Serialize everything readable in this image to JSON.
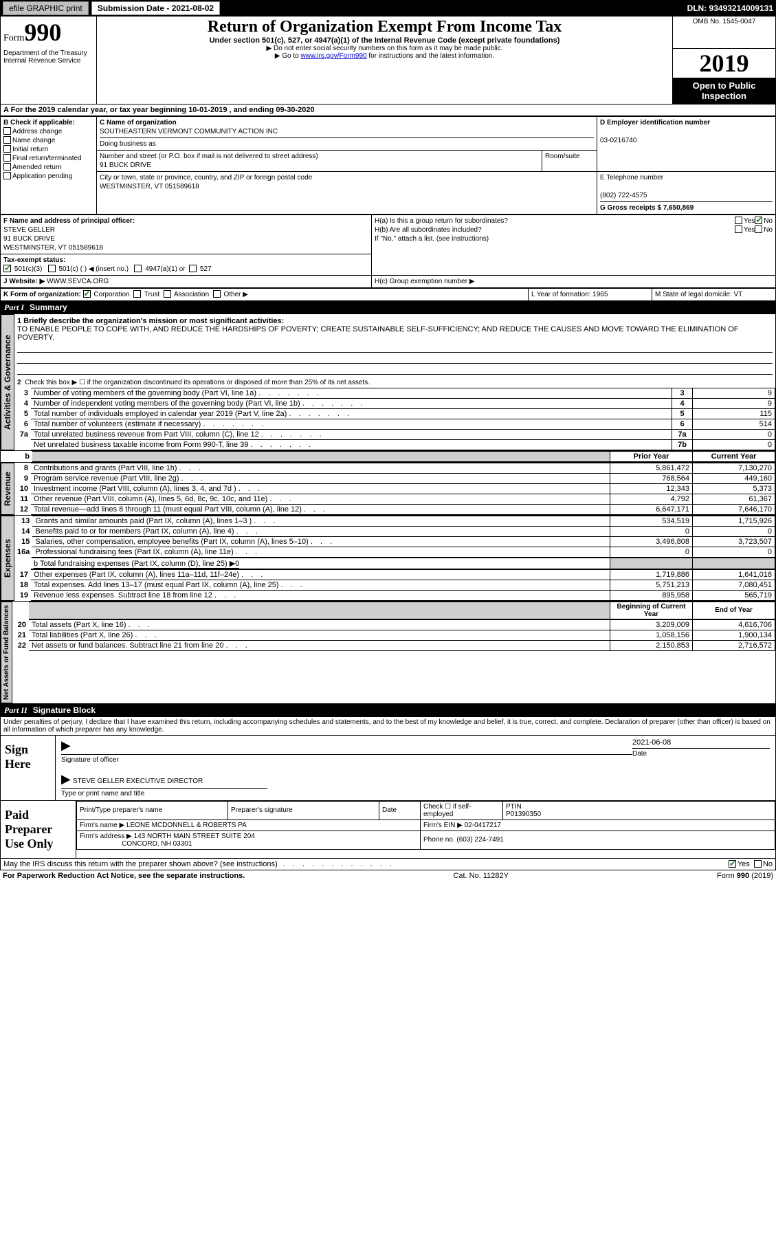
{
  "header_bar": {
    "efile": "efile GRAPHIC print",
    "sub_label": "Submission Date - 2021-08-02",
    "dln": "DLN: 93493214009131"
  },
  "top": {
    "form_label": "Form",
    "form_number": "990",
    "dept": "Department of the Treasury\nInternal Revenue Service",
    "title": "Return of Organization Exempt From Income Tax",
    "subtitle": "Under section 501(c), 527, or 4947(a)(1) of the Internal Revenue Code (except private foundations)",
    "note1": "▶ Do not enter social security numbers on this form as it may be made public.",
    "note2_pre": "▶ Go to ",
    "note2_link": "www.irs.gov/Form990",
    "note2_post": " for instructions and the latest information.",
    "omb": "OMB No. 1545-0047",
    "year": "2019",
    "otp": "Open to Public Inspection"
  },
  "period": {
    "line": "A For the 2019 calendar year, or tax year beginning 10-01-2019   , and ending 09-30-2020"
  },
  "section_b": {
    "heading": "B Check if applicable:",
    "items": [
      "Address change",
      "Name change",
      "Initial return",
      "Final return/terminated",
      "Amended return",
      "Application pending"
    ]
  },
  "section_c": {
    "name_label": "C Name of organization",
    "name": "SOUTHEASTERN VERMONT COMMUNITY ACTION INC",
    "dba_label": "Doing business as",
    "street_label": "Number and street (or P.O. box if mail is not delivered to street address)",
    "street": "91 BUCK DRIVE",
    "room_label": "Room/suite",
    "city_label": "City or town, state or province, country, and ZIP or foreign postal code",
    "city": "WESTMINSTER, VT  051589618"
  },
  "section_d": {
    "label": "D Employer identification number",
    "val": "03-0216740"
  },
  "section_e": {
    "label": "E Telephone number",
    "val": "(802) 722-4575"
  },
  "section_g": {
    "label": "G Gross receipts $ 7,650,869"
  },
  "section_f": {
    "label": "F  Name and address of principal officer:",
    "name": "STEVE GELLER",
    "addr1": "91 BUCK DRIVE",
    "addr2": "WESTMINSTER, VT  051589618"
  },
  "section_h": {
    "ha": "H(a)  Is this a group return for subordinates?",
    "hb": "H(b)  Are all subordinates included?",
    "hb_note": "If \"No,\" attach a list. (see instructions)",
    "hc": "H(c)  Group exemption number ▶",
    "yes": "Yes",
    "no": "No"
  },
  "tax_exempt": {
    "label": "Tax-exempt status:",
    "s1": "501(c)(3)",
    "s2": "501(c) (  ) ◀ (insert no.)",
    "s3": "4947(a)(1) or",
    "s4": "527"
  },
  "website": {
    "label": "J   Website: ▶",
    "val": "WWW.SEVCA.ORG"
  },
  "section_k": {
    "label": "K Form of organization:",
    "corp": "Corporation",
    "trust": "Trust",
    "assoc": "Association",
    "other": "Other ▶"
  },
  "section_l": {
    "label": "L Year of formation: 1965"
  },
  "section_m": {
    "label": "M State of legal domicile: VT"
  },
  "part1": {
    "header": "Summary",
    "part": "Part I"
  },
  "mission": {
    "q": "1  Briefly describe the organization's mission or most significant activities:",
    "text": "TO ENABLE PEOPLE TO COPE WITH, AND REDUCE THE HARDSHIPS OF POVERTY; CREATE SUSTAINABLE SELF-SUFFICIENCY; AND REDUCE THE CAUSES AND MOVE TOWARD THE ELIMINATION OF POVERTY."
  },
  "activities": {
    "label": "Activities & Governance",
    "l2": "Check this box ▶ ☐  if the organization discontinued its operations or disposed of more than 25% of its net assets.",
    "rows": [
      {
        "n": "3",
        "t": "Number of voting members of the governing body (Part VI, line 1a)",
        "b": "3",
        "v": "9"
      },
      {
        "n": "4",
        "t": "Number of independent voting members of the governing body (Part VI, line 1b)",
        "b": "4",
        "v": "9"
      },
      {
        "n": "5",
        "t": "Total number of individuals employed in calendar year 2019 (Part V, line 2a)",
        "b": "5",
        "v": "115"
      },
      {
        "n": "6",
        "t": "Total number of volunteers (estimate if necessary)",
        "b": "6",
        "v": "514"
      },
      {
        "n": "7a",
        "t": "Total unrelated business revenue from Part VIII, column (C), line 12",
        "b": "7a",
        "v": "0"
      },
      {
        "n": "",
        "t": "Net unrelated business taxable income from Form 990-T, line 39",
        "b": "7b",
        "v": "0"
      }
    ]
  },
  "pycy": {
    "prior": "Prior Year",
    "current": "Current Year"
  },
  "revenue": {
    "label": "Revenue",
    "rows": [
      {
        "n": "8",
        "t": "Contributions and grants (Part VIII, line 1h)",
        "p": "5,861,472",
        "c": "7,130,270"
      },
      {
        "n": "9",
        "t": "Program service revenue (Part VIII, line 2g)",
        "p": "768,564",
        "c": "449,160"
      },
      {
        "n": "10",
        "t": "Investment income (Part VIII, column (A), lines 3, 4, and 7d )",
        "p": "12,343",
        "c": "5,373"
      },
      {
        "n": "11",
        "t": "Other revenue (Part VIII, column (A), lines 5, 6d, 8c, 9c, 10c, and 11e)",
        "p": "4,792",
        "c": "61,367"
      },
      {
        "n": "12",
        "t": "Total revenue—add lines 8 through 11 (must equal Part VIII, column (A), line 12)",
        "p": "6,647,171",
        "c": "7,646,170"
      }
    ]
  },
  "expenses": {
    "label": "Expenses",
    "rows": [
      {
        "n": "13",
        "t": "Grants and similar amounts paid (Part IX, column (A), lines 1–3 )",
        "p": "534,519",
        "c": "1,715,926"
      },
      {
        "n": "14",
        "t": "Benefits paid to or for members (Part IX, column (A), line 4)",
        "p": "0",
        "c": "0"
      },
      {
        "n": "15",
        "t": "Salaries, other compensation, employee benefits (Part IX, column (A), lines 5–10)",
        "p": "3,496,808",
        "c": "3,723,507"
      },
      {
        "n": "16a",
        "t": "Professional fundraising fees (Part IX, column (A), line 11e)",
        "p": "0",
        "c": "0"
      }
    ],
    "l16b": "b  Total fundraising expenses (Part IX, column (D), line 25) ▶0",
    "rows2": [
      {
        "n": "17",
        "t": "Other expenses (Part IX, column (A), lines 11a–11d, 11f–24e)",
        "p": "1,719,886",
        "c": "1,641,018"
      },
      {
        "n": "18",
        "t": "Total expenses. Add lines 13–17 (must equal Part IX, column (A), line 25)",
        "p": "5,751,213",
        "c": "7,080,451"
      },
      {
        "n": "19",
        "t": "Revenue less expenses. Subtract line 18 from line 12",
        "p": "895,958",
        "c": "565,719"
      }
    ]
  },
  "netassets": {
    "label": "Net Assets or Fund Balances",
    "bcy": "Beginning of Current Year",
    "eoy": "End of Year",
    "rows": [
      {
        "n": "20",
        "t": "Total assets (Part X, line 16)",
        "p": "3,209,009",
        "c": "4,616,706"
      },
      {
        "n": "21",
        "t": "Total liabilities (Part X, line 26)",
        "p": "1,058,156",
        "c": "1,900,134"
      },
      {
        "n": "22",
        "t": "Net assets or fund balances. Subtract line 21 from line 20",
        "p": "2,150,853",
        "c": "2,716,572"
      }
    ]
  },
  "part2": {
    "header": "Signature Block",
    "part": "Part II"
  },
  "sig_declaration": "Under penalties of perjury, I declare that I have examined this return, including accompanying schedules and statements, and to the best of my knowledge and belief, it is true, correct, and complete. Declaration of preparer (other than officer) is based on all information of which preparer has any knowledge.",
  "sign": {
    "label": "Sign Here",
    "sig_officer": "Signature of officer",
    "date_label": "Date",
    "date": "2021-06-08",
    "name_title": "STEVE GELLER  EXECUTIVE DIRECTOR",
    "type_label": "Type or print name and title"
  },
  "paid": {
    "label": "Paid Preparer Use Only",
    "prep_name_label": "Print/Type preparer's name",
    "prep_sig_label": "Preparer's signature",
    "date_label": "Date",
    "check_label": "Check ☐  if self-employed",
    "ptin_label": "PTIN",
    "ptin": "P01390350",
    "firm_name_label": "Firm's name    ▶",
    "firm_name": "LEONE MCDONNELL & ROBERTS PA",
    "firm_ein_label": "Firm's EIN ▶",
    "firm_ein": "02-0417217",
    "firm_addr_label": "Firm's address ▶",
    "firm_addr1": "143 NORTH MAIN STREET SUITE 204",
    "firm_addr2": "CONCORD, NH  03301",
    "phone_label": "Phone no.",
    "phone": "(603) 224-7491"
  },
  "discuss": {
    "q": "May the IRS discuss this return with the preparer shown above? (see instructions)",
    "yes": "Yes",
    "no": "No"
  },
  "footer": {
    "left": "For Paperwork Reduction Act Notice, see the separate instructions.",
    "mid": "Cat. No. 11282Y",
    "right_pre": "Form ",
    "right_bold": "990",
    "right_post": " (2019)"
  }
}
